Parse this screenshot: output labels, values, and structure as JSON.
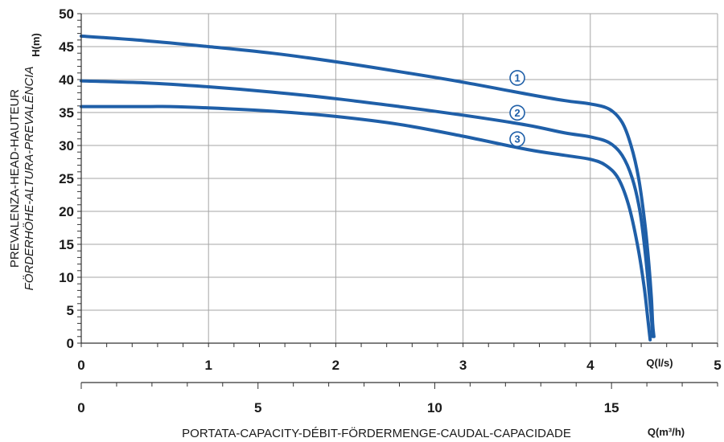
{
  "chart_data": {
    "type": "line",
    "title": "",
    "ylabel_line1": "PREVALENZA-HEAD-HAUTEUR",
    "ylabel_line2": "FÖRDERHÖHE-ALTURA-PREVALÊNCIA",
    "ylabel_unit": "H(m)",
    "xlabel": "PORTATA-CAPACITY-DÉBIT-FÖRDERMENGE-CAUDAL-CAPACIDADE",
    "x_unit": "Q(l/s)",
    "x2_unit": "Q(m³/h)",
    "xlim": [
      0,
      5
    ],
    "ylim": [
      0,
      50
    ],
    "x2lim": [
      0,
      18
    ],
    "grid": true,
    "line_color": "#1f5fa8",
    "x_ticks": [
      0,
      1,
      2,
      3,
      4,
      5
    ],
    "y_ticks": [
      0,
      5,
      10,
      15,
      20,
      25,
      30,
      35,
      40,
      45,
      50
    ],
    "x2_ticks": [
      0,
      5,
      10,
      15
    ],
    "series": [
      {
        "name": "1",
        "label_at": [
          3.3,
          40.5
        ],
        "points": [
          [
            0,
            46.6
          ],
          [
            0.5,
            45.9
          ],
          [
            1,
            45.0
          ],
          [
            1.5,
            44.0
          ],
          [
            2,
            42.7
          ],
          [
            2.5,
            41.2
          ],
          [
            3,
            39.6
          ],
          [
            3.5,
            37.8
          ],
          [
            3.8,
            36.8
          ],
          [
            4.0,
            36.3
          ],
          [
            4.15,
            35.5
          ],
          [
            4.25,
            33.5
          ],
          [
            4.32,
            30.0
          ],
          [
            4.38,
            25.0
          ],
          [
            4.43,
            18.0
          ],
          [
            4.46,
            12.0
          ],
          [
            4.48,
            7.0
          ],
          [
            4.49,
            3.0
          ],
          [
            4.5,
            1.0
          ]
        ]
      },
      {
        "name": "2",
        "label_at": [
          3.3,
          35.2
        ],
        "points": [
          [
            0,
            39.8
          ],
          [
            0.5,
            39.5
          ],
          [
            1,
            38.9
          ],
          [
            1.5,
            38.1
          ],
          [
            2,
            37.1
          ],
          [
            2.5,
            35.9
          ],
          [
            3,
            34.6
          ],
          [
            3.5,
            33.1
          ],
          [
            3.8,
            31.9
          ],
          [
            4.0,
            31.3
          ],
          [
            4.15,
            30.4
          ],
          [
            4.25,
            28.5
          ],
          [
            4.33,
            25.0
          ],
          [
            4.39,
            20.0
          ],
          [
            4.43,
            14.0
          ],
          [
            4.46,
            8.0
          ],
          [
            4.48,
            4.0
          ],
          [
            4.49,
            1.0
          ]
        ]
      },
      {
        "name": "3",
        "label_at": [
          3.3,
          31.2
        ],
        "points": [
          [
            0,
            35.9
          ],
          [
            0.5,
            35.9
          ],
          [
            0.7,
            35.9
          ],
          [
            1,
            35.7
          ],
          [
            1.5,
            35.2
          ],
          [
            2,
            34.4
          ],
          [
            2.5,
            33.2
          ],
          [
            3,
            31.4
          ],
          [
            3.5,
            29.4
          ],
          [
            3.8,
            28.5
          ],
          [
            4.0,
            27.9
          ],
          [
            4.12,
            27.0
          ],
          [
            4.22,
            25.0
          ],
          [
            4.3,
            21.0
          ],
          [
            4.37,
            15.0
          ],
          [
            4.42,
            9.0
          ],
          [
            4.45,
            4.0
          ],
          [
            4.47,
            0.5
          ]
        ]
      }
    ]
  }
}
